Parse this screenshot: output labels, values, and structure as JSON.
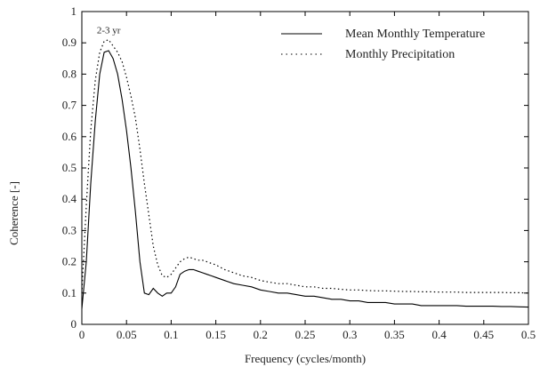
{
  "chart_data": {
    "type": "line",
    "title": "",
    "xlabel": "Frequency (cycles/month)",
    "ylabel": "Coherence [-]",
    "xlim": [
      0,
      0.5
    ],
    "ylim": [
      0,
      1
    ],
    "grid": false,
    "legend_position": "top-right",
    "x_ticks": [
      "0",
      "0.05",
      "0.1",
      "0.15",
      "0.2",
      "0.25",
      "0.3",
      "0.35",
      "0.4",
      "0.45",
      "0.5"
    ],
    "y_ticks": [
      "0",
      "0.1",
      "0.2",
      "0.3",
      "0.4",
      "0.5",
      "0.6",
      "0.7",
      "0.8",
      "0.9",
      "1"
    ],
    "annotations": [
      {
        "text": "2-3 yr",
        "x": 0.03,
        "y": 0.93
      }
    ],
    "series": [
      {
        "name": "Mean Monthly Temperature",
        "style": "solid",
        "color": "#000000",
        "x": [
          0,
          0.005,
          0.01,
          0.015,
          0.02,
          0.025,
          0.03,
          0.035,
          0.04,
          0.045,
          0.05,
          0.055,
          0.06,
          0.065,
          0.07,
          0.075,
          0.08,
          0.085,
          0.09,
          0.095,
          0.1,
          0.105,
          0.11,
          0.115,
          0.12,
          0.125,
          0.13,
          0.135,
          0.14,
          0.145,
          0.15,
          0.16,
          0.17,
          0.18,
          0.19,
          0.2,
          0.21,
          0.22,
          0.23,
          0.24,
          0.25,
          0.26,
          0.27,
          0.28,
          0.29,
          0.3,
          0.31,
          0.32,
          0.33,
          0.34,
          0.35,
          0.36,
          0.37,
          0.38,
          0.39,
          0.4,
          0.41,
          0.42,
          0.43,
          0.44,
          0.45,
          0.46,
          0.47,
          0.48,
          0.49,
          0.5
        ],
        "y": [
          0.05,
          0.2,
          0.45,
          0.65,
          0.8,
          0.87,
          0.875,
          0.85,
          0.8,
          0.72,
          0.62,
          0.5,
          0.36,
          0.2,
          0.1,
          0.095,
          0.115,
          0.1,
          0.09,
          0.1,
          0.1,
          0.12,
          0.16,
          0.17,
          0.175,
          0.175,
          0.17,
          0.165,
          0.16,
          0.155,
          0.15,
          0.14,
          0.13,
          0.125,
          0.12,
          0.11,
          0.105,
          0.1,
          0.1,
          0.095,
          0.09,
          0.09,
          0.085,
          0.08,
          0.08,
          0.075,
          0.075,
          0.07,
          0.07,
          0.07,
          0.065,
          0.065,
          0.065,
          0.06,
          0.06,
          0.06,
          0.06,
          0.06,
          0.058,
          0.058,
          0.058,
          0.058,
          0.057,
          0.057,
          0.056,
          0.055
        ]
      },
      {
        "name": "Monthly Precipitation",
        "style": "dotted",
        "color": "#000000",
        "x": [
          0,
          0.005,
          0.01,
          0.015,
          0.02,
          0.025,
          0.03,
          0.035,
          0.04,
          0.045,
          0.05,
          0.055,
          0.06,
          0.065,
          0.07,
          0.075,
          0.08,
          0.085,
          0.09,
          0.095,
          0.1,
          0.105,
          0.11,
          0.115,
          0.12,
          0.125,
          0.13,
          0.135,
          0.14,
          0.145,
          0.15,
          0.16,
          0.17,
          0.18,
          0.19,
          0.2,
          0.21,
          0.22,
          0.23,
          0.24,
          0.25,
          0.26,
          0.27,
          0.28,
          0.29,
          0.3,
          0.31,
          0.32,
          0.33,
          0.34,
          0.35,
          0.36,
          0.37,
          0.38,
          0.39,
          0.4,
          0.41,
          0.42,
          0.43,
          0.44,
          0.45,
          0.46,
          0.47,
          0.48,
          0.49,
          0.5
        ],
        "y": [
          0.1,
          0.38,
          0.62,
          0.78,
          0.87,
          0.905,
          0.91,
          0.89,
          0.87,
          0.84,
          0.79,
          0.73,
          0.66,
          0.56,
          0.45,
          0.35,
          0.25,
          0.19,
          0.155,
          0.15,
          0.16,
          0.18,
          0.2,
          0.21,
          0.215,
          0.21,
          0.205,
          0.205,
          0.2,
          0.195,
          0.19,
          0.175,
          0.165,
          0.155,
          0.15,
          0.14,
          0.135,
          0.13,
          0.13,
          0.125,
          0.12,
          0.12,
          0.115,
          0.115,
          0.112,
          0.11,
          0.11,
          0.108,
          0.107,
          0.107,
          0.106,
          0.105,
          0.105,
          0.104,
          0.104,
          0.103,
          0.103,
          0.103,
          0.102,
          0.102,
          0.102,
          0.102,
          0.102,
          0.101,
          0.101,
          0.1
        ]
      }
    ]
  }
}
